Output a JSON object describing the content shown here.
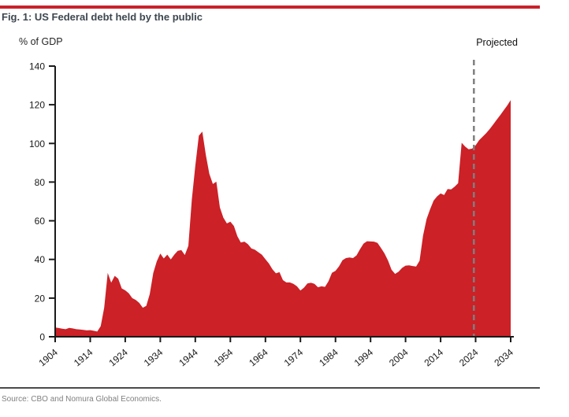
{
  "figure": {
    "title": "Fig. 1: US Federal debt held by the public",
    "y_axis_unit_label": "% of GDP",
    "projected_label": "Projected",
    "source": "Source: CBO and Nomura Global Economics."
  },
  "colors": {
    "area_fill": "#cb2127",
    "accent_rule": "#c9222a",
    "title_text": "#3e474f",
    "axis": "#1a1a1a",
    "tick_label": "#1a1a1a",
    "projection_dash": "#7f7f7f",
    "bottom_rule": "#4a4a4a",
    "source_text": "#808080"
  },
  "chart_data": {
    "type": "area",
    "title": "Fig. 1: US Federal debt held by the public",
    "xlabel": "",
    "ylabel": "% of GDP",
    "ylim": [
      0,
      140
    ],
    "y_ticks": [
      0,
      20,
      40,
      60,
      80,
      100,
      120,
      140
    ],
    "x_ticks": [
      1904,
      1914,
      1924,
      1934,
      1944,
      1954,
      1964,
      1974,
      1984,
      1994,
      2004,
      2014,
      2024,
      2034
    ],
    "grid": false,
    "legend": null,
    "projection_divider_year": 2023.5,
    "annotations": [
      {
        "text": "Projected",
        "near_year": 2024,
        "position": "top-right"
      }
    ],
    "x_start_year": 1904,
    "x_end_year": 2034,
    "x_step": 1,
    "series": [
      {
        "name": "US federal debt held by the public (% of GDP)",
        "values": [
          4.8,
          4.5,
          4.2,
          3.9,
          4.6,
          4.3,
          3.9,
          3.8,
          3.6,
          3.3,
          3.4,
          3.1,
          2.7,
          5.5,
          15.0,
          33.0,
          28.0,
          31.5,
          30.0,
          25.0,
          24.0,
          22.5,
          20.0,
          19.0,
          17.5,
          15.0,
          16.0,
          22.0,
          33.0,
          39.0,
          43.0,
          40.5,
          42.5,
          40.0,
          42.5,
          44.5,
          44.8,
          42.3,
          47.0,
          70.9,
          88.3,
          104.0,
          106.1,
          94.0,
          84.3,
          79.0,
          80.2,
          66.9,
          61.6,
          58.6,
          59.5,
          57.3,
          52.0,
          48.7,
          49.2,
          47.9,
          45.7,
          45.0,
          43.7,
          42.4,
          40.1,
          37.9,
          34.9,
          32.8,
          33.4,
          29.3,
          28.1,
          28.1,
          27.4,
          26.1,
          23.9,
          25.4,
          27.6,
          27.9,
          27.4,
          25.6,
          26.1,
          25.8,
          28.7,
          33.1,
          34.1,
          36.4,
          39.6,
          40.7,
          41.0,
          40.7,
          42.1,
          45.3,
          48.2,
          49.4,
          49.3,
          49.2,
          48.5,
          45.9,
          43.1,
          39.4,
          34.7,
          32.5,
          33.6,
          35.6,
          36.8,
          36.9,
          36.6,
          36.3,
          39.3,
          52.3,
          60.9,
          65.9,
          70.4,
          72.6,
          74.1,
          73.3,
          76.4,
          76.2,
          77.6,
          79.4,
          100.3,
          98.4,
          97.0,
          97.3,
          99.0,
          101.7,
          103.5,
          105.3,
          107.4,
          109.8,
          112.2,
          114.6,
          117.1,
          119.6,
          122.4
        ]
      }
    ]
  }
}
